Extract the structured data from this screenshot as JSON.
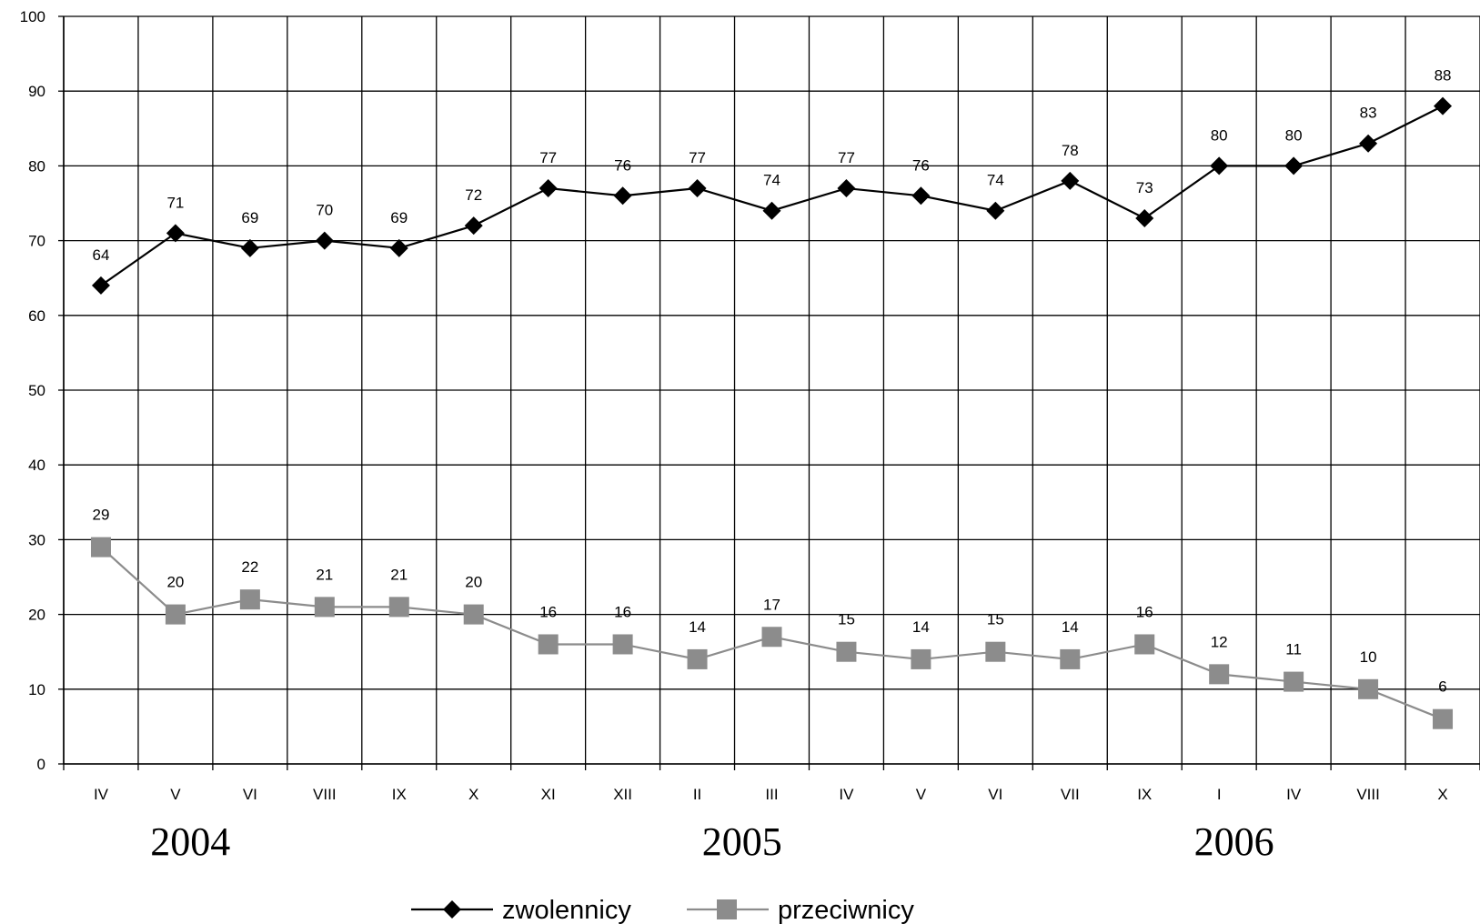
{
  "chart_data": {
    "type": "line",
    "categories": [
      "IV",
      "V",
      "VI",
      "VIII",
      "IX",
      "X",
      "XI",
      "XII",
      "II",
      "III",
      "IV",
      "V",
      "VI",
      "VII",
      "IX",
      "I",
      "IV",
      "VIII",
      "X"
    ],
    "year_groups": [
      "2004",
      "2005",
      "2006"
    ],
    "series": [
      {
        "name": "zwolennicy",
        "color": "#000000",
        "marker": "diamond",
        "values": [
          64,
          71,
          69,
          70,
          69,
          72,
          77,
          76,
          77,
          74,
          77,
          76,
          74,
          78,
          73,
          80,
          80,
          83,
          88
        ]
      },
      {
        "name": "przeciwnicy",
        "color": "#8c8c8c",
        "marker": "square",
        "values": [
          29,
          20,
          22,
          21,
          21,
          20,
          16,
          16,
          14,
          17,
          15,
          14,
          15,
          14,
          16,
          12,
          11,
          10,
          6
        ]
      }
    ],
    "yticks": [
      "0",
      "10",
      "20",
      "30",
      "40",
      "50",
      "60",
      "70",
      "80",
      "90",
      "100"
    ],
    "ylim": [
      0,
      100
    ],
    "grid": true,
    "legend_position": "bottom"
  }
}
